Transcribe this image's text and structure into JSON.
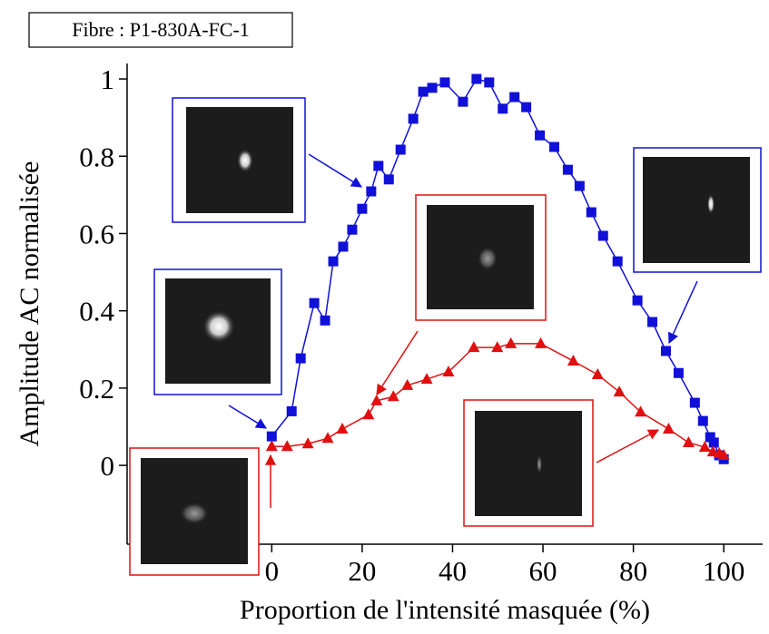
{
  "chart_data": {
    "type": "line",
    "annotation": "Fibre : P1-830A-FC-1",
    "x_label": "Proportion de l'intensité masquée (%)",
    "y_label": "Amplitude AC normalisée",
    "xlim": [
      -32,
      108.6
    ],
    "ylim": [
      -0.204,
      1.04
    ],
    "xticks": [
      0,
      20,
      40,
      60,
      80,
      100
    ],
    "yticks": [
      0,
      0.2,
      0.4,
      0.6,
      0.8,
      1
    ],
    "series": [
      {
        "color": "#1010d8",
        "marker": "square",
        "x": [
          0,
          4.4,
          6.4,
          9.4,
          11.8,
          13.6,
          15.8,
          17.8,
          20,
          22,
          23.6,
          25.9,
          28.5,
          31.3,
          33.5,
          35.5,
          38.3,
          42.3,
          45.3,
          48.1,
          51.1,
          53.7,
          56.3,
          59.3,
          62.5,
          65.5,
          68.1,
          70.7,
          73.3,
          76.5,
          80.9,
          84.2,
          87.2,
          90,
          93.6,
          95.4,
          97,
          97.8,
          99,
          100
        ],
        "values": [
          0.075,
          0.14,
          0.277,
          0.42,
          0.375,
          0.528,
          0.566,
          0.61,
          0.664,
          0.709,
          0.775,
          0.74,
          0.817,
          0.897,
          0.967,
          0.977,
          0.991,
          0.941,
          1,
          0.991,
          0.923,
          0.953,
          0.927,
          0.854,
          0.824,
          0.765,
          0.723,
          0.655,
          0.594,
          0.528,
          0.427,
          0.371,
          0.296,
          0.239,
          0.162,
          0.115,
          0.073,
          0.059,
          0.026,
          0.016
        ]
      },
      {
        "color": "#e01010",
        "marker": "triangle",
        "x": [
          0,
          3.4,
          8,
          12.4,
          15.6,
          21.4,
          23.2,
          26.9,
          30,
          34.3,
          39.1,
          44.7,
          49.9,
          52.9,
          59.5,
          66.7,
          72.1,
          76.9,
          81.6,
          87.8,
          92.2,
          95.8,
          97.6,
          99,
          100
        ],
        "values": [
          0.049,
          0.049,
          0.056,
          0.07,
          0.094,
          0.131,
          0.167,
          0.178,
          0.207,
          0.223,
          0.242,
          0.305,
          0.305,
          0.315,
          0.315,
          0.27,
          0.235,
          0.19,
          0.138,
          0.094,
          0.059,
          0.047,
          0.035,
          0.031,
          0.026
        ]
      }
    ]
  }
}
